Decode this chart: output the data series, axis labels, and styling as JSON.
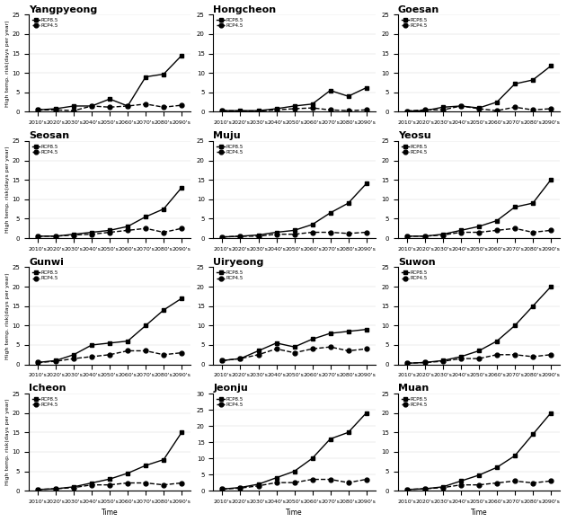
{
  "x_labels": [
    "2010's",
    "2020's",
    "2030's",
    "2040's",
    "2050's",
    "2060's",
    "2070's",
    "2080's",
    "2090's"
  ],
  "x_vals": [
    0,
    1,
    2,
    3,
    4,
    5,
    6,
    7,
    8
  ],
  "subplots": [
    {
      "title": "Yangpyeong",
      "ylim": [
        0,
        25
      ],
      "yticks": [
        0,
        5,
        10,
        15,
        20,
        25
      ],
      "rcp85": [
        0.5,
        0.8,
        1.5,
        1.5,
        3.3,
        1.5,
        9.0,
        9.7,
        14.5
      ],
      "rcp45": [
        0.5,
        0.5,
        0.3,
        1.5,
        1.2,
        1.5,
        2.0,
        1.2,
        1.7
      ]
    },
    {
      "title": "Hongcheon",
      "ylim": [
        0,
        25
      ],
      "yticks": [
        0,
        5,
        10,
        15,
        20,
        25
      ],
      "rcp85": [
        0.3,
        0.3,
        0.3,
        0.8,
        1.5,
        2.0,
        5.5,
        4.0,
        6.2
      ],
      "rcp45": [
        0.3,
        0.2,
        0.2,
        0.5,
        0.8,
        1.0,
        0.5,
        0.3,
        0.5
      ]
    },
    {
      "title": "Goesan",
      "ylim": [
        0,
        25
      ],
      "yticks": [
        0,
        5,
        10,
        15,
        20,
        25
      ],
      "rcp85": [
        0.2,
        0.3,
        1.2,
        1.5,
        1.0,
        2.5,
        7.2,
        8.2,
        11.8
      ],
      "rcp45": [
        0.2,
        0.5,
        0.5,
        1.5,
        0.8,
        0.3,
        1.2,
        0.5,
        0.8
      ]
    },
    {
      "title": "Seosan",
      "ylim": [
        0,
        25
      ],
      "yticks": [
        0,
        5,
        10,
        15,
        20,
        25
      ],
      "rcp85": [
        0.5,
        0.5,
        1.0,
        1.5,
        2.0,
        3.0,
        5.5,
        7.5,
        13.0
      ],
      "rcp45": [
        0.5,
        0.5,
        0.8,
        1.0,
        1.5,
        2.0,
        2.5,
        1.5,
        2.5
      ]
    },
    {
      "title": "Muju",
      "ylim": [
        0,
        25
      ],
      "yticks": [
        0,
        5,
        10,
        15,
        20,
        25
      ],
      "rcp85": [
        0.3,
        0.5,
        0.8,
        1.5,
        2.0,
        3.5,
        6.5,
        9.0,
        14.0
      ],
      "rcp45": [
        0.3,
        0.5,
        0.5,
        1.0,
        1.0,
        1.5,
        1.5,
        1.2,
        1.5
      ]
    },
    {
      "title": "Yeosu",
      "ylim": [
        0,
        25
      ],
      "yticks": [
        0,
        5,
        10,
        15,
        20,
        25
      ],
      "rcp85": [
        0.5,
        0.5,
        1.0,
        2.0,
        3.0,
        4.5,
        8.0,
        9.0,
        15.0
      ],
      "rcp45": [
        0.5,
        0.5,
        0.8,
        1.5,
        1.5,
        2.0,
        2.5,
        1.5,
        2.0
      ]
    },
    {
      "title": "Gunwi",
      "ylim": [
        0,
        25
      ],
      "yticks": [
        0,
        5,
        10,
        15,
        20,
        25
      ],
      "rcp85": [
        0.5,
        1.0,
        2.5,
        5.0,
        5.5,
        6.0,
        10.0,
        14.0,
        17.0
      ],
      "rcp45": [
        0.5,
        0.8,
        1.5,
        2.0,
        2.5,
        3.5,
        3.5,
        2.5,
        3.0
      ]
    },
    {
      "title": "Uiryeong",
      "ylim": [
        0,
        25
      ],
      "yticks": [
        0,
        5,
        10,
        15,
        20,
        25
      ],
      "rcp85": [
        1.0,
        1.5,
        3.5,
        5.5,
        4.5,
        6.5,
        8.0,
        8.5,
        9.0
      ],
      "rcp45": [
        1.0,
        1.5,
        2.5,
        4.0,
        3.0,
        4.0,
        4.5,
        3.5,
        4.0
      ]
    },
    {
      "title": "Suwon",
      "ylim": [
        0,
        25
      ],
      "yticks": [
        0,
        5,
        10,
        15,
        20,
        25
      ],
      "rcp85": [
        0.3,
        0.5,
        1.0,
        2.0,
        3.5,
        6.0,
        10.0,
        15.0,
        20.0
      ],
      "rcp45": [
        0.3,
        0.5,
        0.8,
        1.5,
        1.5,
        2.5,
        2.5,
        2.0,
        2.5
      ]
    },
    {
      "title": "Icheon",
      "ylim": [
        0,
        25
      ],
      "yticks": [
        0,
        5,
        10,
        15,
        20,
        25
      ],
      "rcp85": [
        0.3,
        0.5,
        1.0,
        2.0,
        3.0,
        4.5,
        6.5,
        8.0,
        15.0
      ],
      "rcp45": [
        0.3,
        0.5,
        0.8,
        1.5,
        1.5,
        2.0,
        2.0,
        1.5,
        2.0
      ]
    },
    {
      "title": "Jeonju",
      "ylim": [
        0,
        30
      ],
      "yticks": [
        0,
        5,
        10,
        15,
        20,
        25,
        30
      ],
      "rcp85": [
        0.5,
        1.0,
        2.0,
        4.0,
        6.0,
        10.0,
        16.0,
        18.0,
        24.0
      ],
      "rcp45": [
        0.5,
        0.8,
        1.5,
        2.5,
        2.5,
        3.5,
        3.5,
        2.5,
        3.5
      ]
    },
    {
      "title": "Muan",
      "ylim": [
        0,
        25
      ],
      "yticks": [
        0,
        5,
        10,
        15,
        20,
        25
      ],
      "rcp85": [
        0.3,
        0.5,
        1.0,
        2.5,
        4.0,
        6.0,
        9.0,
        14.5,
        20.0
      ],
      "rcp45": [
        0.3,
        0.5,
        0.8,
        1.5,
        1.5,
        2.0,
        2.5,
        2.0,
        2.5
      ]
    }
  ],
  "legend_labels": [
    "RCP8.5",
    "RCP4.5"
  ],
  "ylabel": "High temp. risk(days per year)",
  "xlabel": "Time",
  "line_color": "black",
  "marker_rcp85": "s",
  "marker_rcp45": "o",
  "linestyle_rcp85": "-",
  "linestyle_rcp45": "--"
}
